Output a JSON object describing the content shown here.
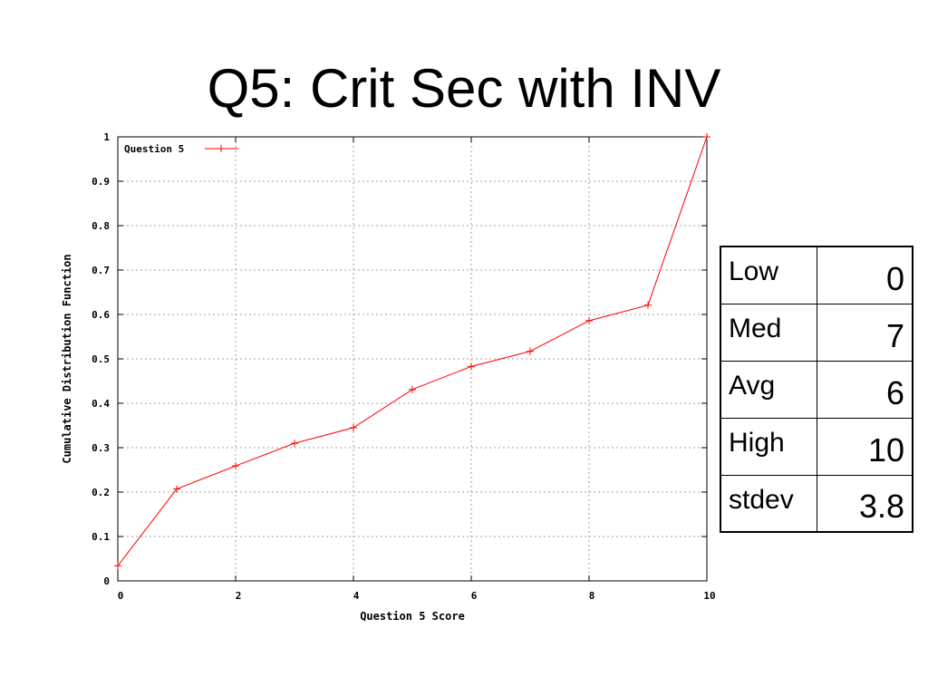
{
  "slide": {
    "title": "Q5: Crit Sec with INV"
  },
  "chart_data": {
    "type": "line",
    "xlabel": "Question 5 Score",
    "ylabel": "Cumulative Distribution Function",
    "xlim": [
      0,
      10
    ],
    "ylim": [
      0,
      1
    ],
    "x_ticks": [
      "0",
      "2",
      "4",
      "6",
      "8",
      "10"
    ],
    "y_ticks": [
      "0",
      "0.1",
      "0.2",
      "0.3",
      "0.4",
      "0.5",
      "0.6",
      "0.7",
      "0.8",
      "0.9",
      "1"
    ],
    "grid": true,
    "legend_position": "top-left",
    "series": [
      {
        "name": "Question 5",
        "color": "#ff0000",
        "marker": "plus",
        "x": [
          0,
          1,
          2,
          3,
          4,
          5,
          6,
          7,
          8,
          9,
          10
        ],
        "y": [
          0.034,
          0.207,
          0.259,
          0.31,
          0.345,
          0.431,
          0.483,
          0.517,
          0.586,
          0.621,
          1.0
        ]
      }
    ]
  },
  "stats_table": {
    "rows": [
      {
        "label": "Low",
        "value": "0"
      },
      {
        "label": "Med",
        "value": "7"
      },
      {
        "label": "Avg",
        "value": "6"
      },
      {
        "label": "High",
        "value": "10"
      },
      {
        "label": "stdev",
        "value": "3.8"
      }
    ]
  }
}
